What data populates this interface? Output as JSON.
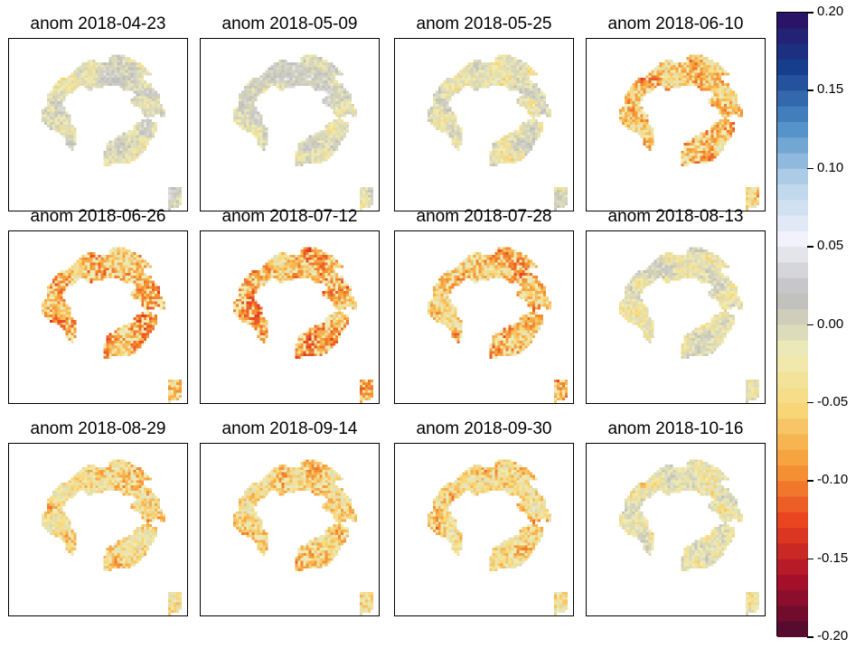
{
  "chart_data": {
    "type": "heatmap",
    "layout": {
      "rows": 3,
      "cols": 4
    },
    "panels": [
      {
        "title": "anom 2018-04-23",
        "mean": 0.03
      },
      {
        "title": "anom 2018-05-09",
        "mean": 0.035
      },
      {
        "title": "anom 2018-05-25",
        "mean": 0.02
      },
      {
        "title": "anom 2018-06-10",
        "mean": -0.035
      },
      {
        "title": "anom 2018-06-26",
        "mean": -0.05
      },
      {
        "title": "anom 2018-07-12",
        "mean": -0.055
      },
      {
        "title": "anom 2018-07-28",
        "mean": -0.045
      },
      {
        "title": "anom 2018-08-13",
        "mean": 0.02
      },
      {
        "title": "anom 2018-08-29",
        "mean": -0.02
      },
      {
        "title": "anom 2018-09-14",
        "mean": -0.03
      },
      {
        "title": "anom 2018-09-30",
        "mean": -0.025
      },
      {
        "title": "anom 2018-10-16",
        "mean": 0.01
      }
    ],
    "colorbar": {
      "min": -0.2,
      "max": 0.2,
      "ticks": [
        "0.20",
        "0.15",
        "0.10",
        "0.05",
        "0.00",
        "-0.05",
        "-0.10",
        "-0.15",
        "-0.20"
      ],
      "colors": [
        "#4a0a2f",
        "#a8102a",
        "#e8401f",
        "#f69a35",
        "#f8d778",
        "#efedb8",
        "#bdbdbd",
        "#f2f2fb",
        "#b7d3ea",
        "#4f8fc8",
        "#163f8f",
        "#2c0d62"
      ]
    }
  }
}
